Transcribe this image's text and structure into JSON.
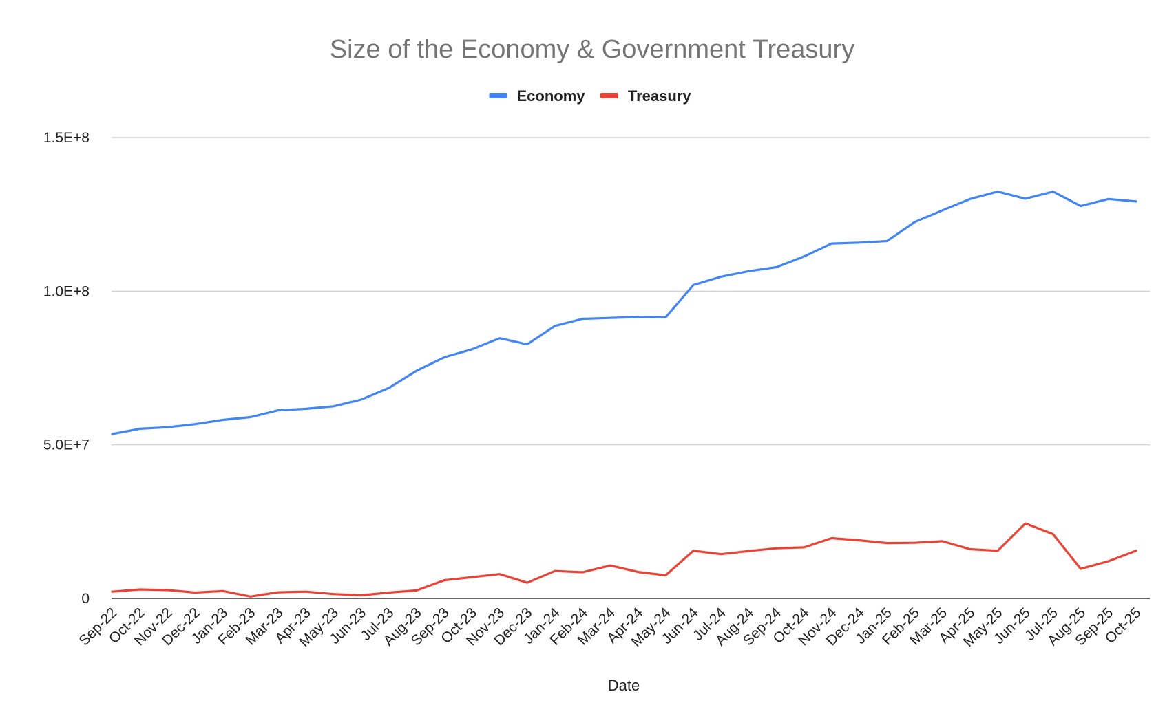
{
  "chart_data": {
    "type": "line",
    "title": "Size of the Economy & Government Treasury",
    "xlabel": "Date",
    "ylabel": "",
    "x": [
      "Sep-22",
      "Oct-22",
      "Nov-22",
      "Dec-22",
      "Jan-23",
      "Feb-23",
      "Mar-23",
      "Apr-23",
      "May-23",
      "Jun-23",
      "Jul-23",
      "Aug-23",
      "Sep-23",
      "Oct-23",
      "Nov-23",
      "Dec-23",
      "Jan-24",
      "Feb-24",
      "Mar-24",
      "Apr-24",
      "May-24",
      "Jun-24",
      "Jul-24",
      "Aug-24",
      "Sep-24",
      "Oct-24",
      "Nov-24",
      "Dec-24",
      "Jan-25",
      "Feb-25",
      "Mar-25",
      "Apr-25",
      "May-25",
      "Jun-25",
      "Jul-25",
      "Aug-25",
      "Sep-25",
      "Oct-25"
    ],
    "series": [
      {
        "name": "Economy",
        "color": "#4285F4",
        "values": [
          53500000,
          55200000,
          55700000,
          56700000,
          58100000,
          59000000,
          61200000,
          61700000,
          62500000,
          64700000,
          68500000,
          74100000,
          78500000,
          81100000,
          84700000,
          82700000,
          88700000,
          91000000,
          91300000,
          91600000,
          91500000,
          102000000,
          104700000,
          106500000,
          107800000,
          111300000,
          115500000,
          115800000,
          116300000,
          122500000,
          126300000,
          130000000,
          132400000,
          130100000,
          132400000,
          127700000,
          130000000,
          129200000
        ]
      },
      {
        "name": "Treasury",
        "color": "#EA4335",
        "values": [
          2200000,
          2900000,
          2700000,
          1900000,
          2400000,
          600000,
          2000000,
          2200000,
          1400000,
          1000000,
          1900000,
          2600000,
          5900000,
          6900000,
          7900000,
          5100000,
          8900000,
          8500000,
          10700000,
          8600000,
          7500000,
          15500000,
          14400000,
          15400000,
          16300000,
          16600000,
          19600000,
          18900000,
          18000000,
          18100000,
          18600000,
          16000000,
          15500000,
          24400000,
          20900000,
          9600000,
          12100000,
          15500000
        ]
      }
    ],
    "ylim": [
      0,
      150000000
    ],
    "yticks": [
      {
        "value": 0,
        "label": "0"
      },
      {
        "value": 50000000,
        "label": "5.0E+7"
      },
      {
        "value": 100000000,
        "label": "1.0E+8"
      },
      {
        "value": 150000000,
        "label": "1.5E+8"
      }
    ],
    "grid": true,
    "legend_position": "top-center"
  }
}
